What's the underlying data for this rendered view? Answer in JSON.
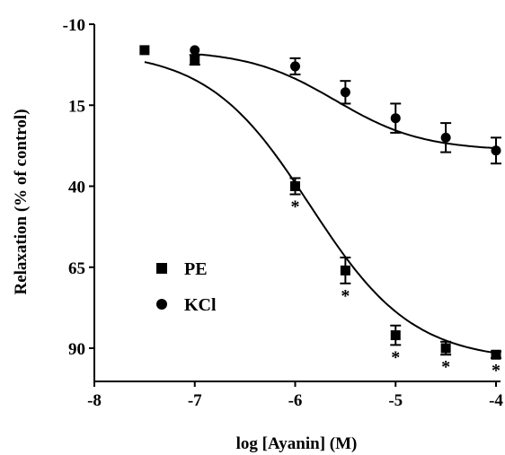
{
  "chart_data": {
    "type": "scatter",
    "xlabel": "log [Ayanin] (M)",
    "ylabel": "Relaxation (% of control)",
    "xlim": [
      -8,
      -4
    ],
    "ylim": [
      -10,
      100
    ],
    "y_inverted": true,
    "x_ticks": [
      -8,
      -7,
      -6,
      -5,
      -4
    ],
    "x_tick_labels": [
      "-8",
      "-7",
      "-6",
      "-5",
      "-4"
    ],
    "y_ticks": [
      -10,
      15,
      40,
      65,
      90
    ],
    "y_tick_labels": [
      "-10",
      "15",
      "40",
      "65",
      "90"
    ],
    "legend_position": "bottom-left",
    "series": [
      {
        "name": "PE",
        "marker": "square",
        "x": [
          -7.5,
          -7,
          -6,
          -5.5,
          -5,
          -4.5,
          -4
        ],
        "y": [
          -2,
          1,
          40,
          66,
          86,
          90,
          92
        ],
        "error": [
          0,
          1.5,
          2.5,
          4,
          3,
          2,
          1
        ],
        "significant": [
          false,
          false,
          true,
          true,
          true,
          true,
          true
        ],
        "fit": {
          "bottom": -2,
          "top": 94,
          "logEC50": -5.85,
          "hill": 0.85
        }
      },
      {
        "name": "KCl",
        "marker": "circle",
        "x": [
          -7,
          -6,
          -5.5,
          -5,
          -4.5,
          -4
        ],
        "y": [
          -2,
          3,
          11,
          19,
          25,
          29
        ],
        "error": [
          0,
          2.5,
          3.5,
          4.5,
          4.5,
          4
        ],
        "significant": [
          false,
          false,
          false,
          false,
          false,
          false
        ],
        "fit": {
          "bottom": -2,
          "top": 29,
          "logEC50": -5.6,
          "hill": 1.0
        }
      }
    ],
    "significance_marker": "*"
  }
}
